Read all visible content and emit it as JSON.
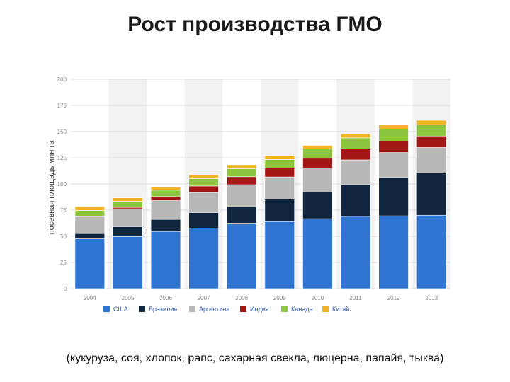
{
  "slide": {
    "title": "Рост производства ГМО",
    "caption": "(кукуруза, соя, хлопок, рапс, сахарная свекла, люцерна, папайя, тыква)"
  },
  "chart_data": {
    "type": "bar",
    "stacked": true,
    "title": "",
    "xlabel": "",
    "ylabel": "посевная площадь млн га",
    "ylim": [
      0,
      200
    ],
    "yticks": [
      0,
      25,
      50,
      75,
      100,
      125,
      150,
      175,
      200
    ],
    "grid": true,
    "legend_position": "bottom",
    "categories": [
      "2004",
      "2005",
      "2006",
      "2007",
      "2008",
      "2009",
      "2010",
      "2011",
      "2012",
      "2013"
    ],
    "series": [
      {
        "name": "США",
        "color": "#2f74d0",
        "values": [
          47.6,
          49.8,
          54.6,
          57.7,
          62.5,
          64.0,
          66.8,
          69.0,
          69.5,
          70.1
        ]
      },
      {
        "name": "Бразилия",
        "color": "#10263f",
        "values": [
          5.0,
          9.4,
          11.5,
          15.0,
          15.8,
          21.4,
          25.4,
          30.3,
          36.6,
          40.3
        ]
      },
      {
        "name": "Аргентина",
        "color": "#b8b8b8",
        "values": [
          16.2,
          17.1,
          18.0,
          19.1,
          21.0,
          21.3,
          22.9,
          23.7,
          23.9,
          24.4
        ]
      },
      {
        "name": "Индия",
        "color": "#a31717",
        "values": [
          0.5,
          1.3,
          3.8,
          6.2,
          7.6,
          8.4,
          9.4,
          10.6,
          10.8,
          11.0
        ]
      },
      {
        "name": "Канада",
        "color": "#8cc63f",
        "values": [
          5.4,
          5.8,
          6.1,
          7.0,
          7.6,
          8.2,
          8.8,
          10.4,
          11.6,
          10.8
        ]
      },
      {
        "name": "Китай",
        "color": "#f0b429",
        "values": [
          3.7,
          3.3,
          3.5,
          3.8,
          3.8,
          3.7,
          3.5,
          3.9,
          4.0,
          4.2
        ]
      }
    ]
  }
}
